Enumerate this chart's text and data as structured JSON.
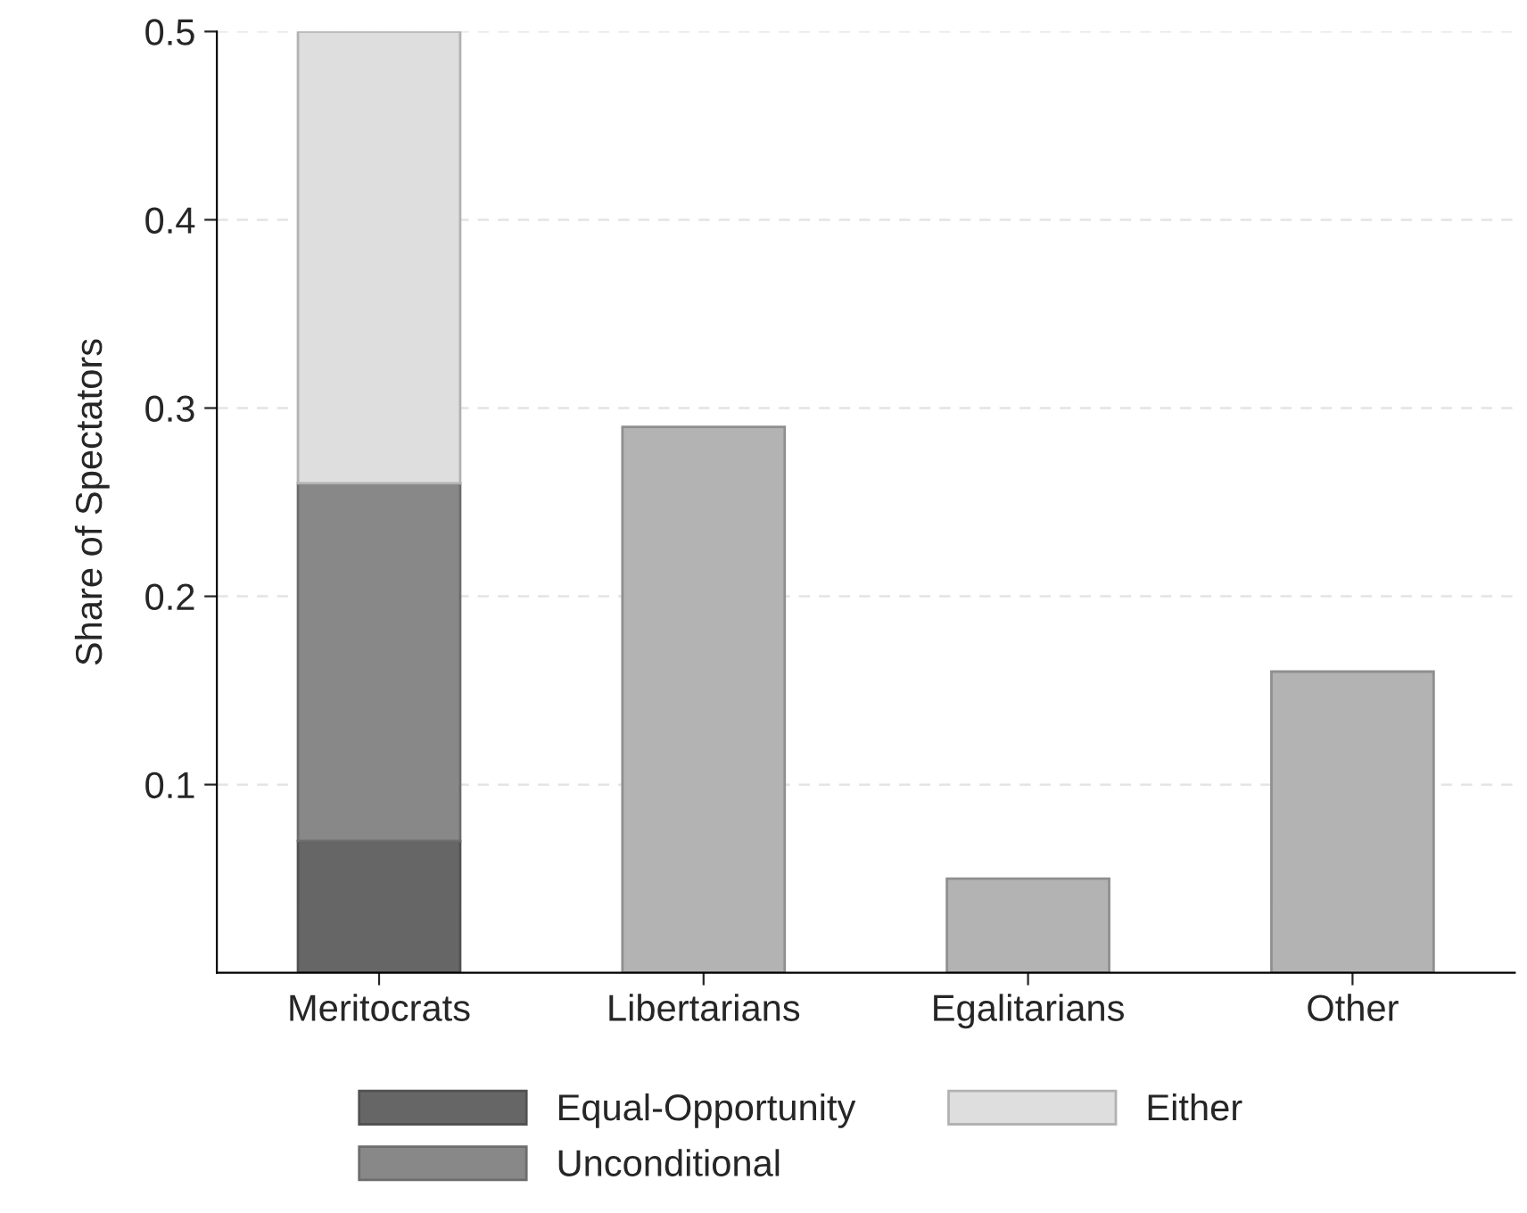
{
  "chart_data": {
    "type": "bar",
    "ylabel": "Share of Spectators",
    "categories": [
      "Meritocrats",
      "Libertarians",
      "Egalitarians",
      "Other"
    ],
    "stacked": true,
    "series": [
      {
        "name": "Equal-Opportunity",
        "color": "#666666",
        "values": [
          0.07,
          null,
          null,
          null
        ]
      },
      {
        "name": "Unconditional",
        "color": "#888888",
        "values": [
          0.19,
          null,
          null,
          null
        ]
      },
      {
        "name": "Either",
        "color": "#dedede",
        "values": [
          0.24,
          null,
          null,
          null
        ]
      },
      {
        "color": "#b3b3b3",
        "values": [
          null,
          0.29,
          0.05,
          0.16
        ]
      }
    ],
    "ylim": [
      0,
      0.5
    ],
    "yticks": [
      0.1,
      0.2,
      0.3,
      0.4,
      0.5
    ],
    "grid": "y",
    "legend": "bottom"
  }
}
